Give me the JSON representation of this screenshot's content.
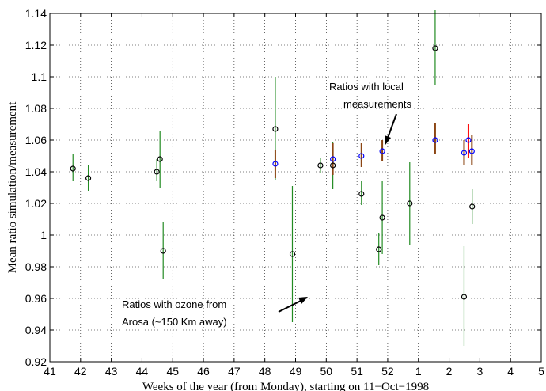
{
  "chart_data": {
    "type": "scatter",
    "title": "",
    "xlabel": "Weeks of the year (from Monday), starting on 11−Oct−1998",
    "ylabel": "Mean ratio simulation/measurement",
    "xlim": [
      41,
      58
    ],
    "ylim": [
      0.92,
      1.14
    ],
    "grid": true,
    "x_tick_labels": [
      "41",
      "42",
      "43",
      "44",
      "45",
      "46",
      "47",
      "48",
      "49",
      "50",
      "51",
      "52",
      "1",
      "2",
      "3",
      "4",
      "5"
    ],
    "y_tick_labels": [
      "0.92",
      "0.94",
      "0.96",
      "0.98",
      "1",
      "1.02",
      "1.04",
      "1.06",
      "1.08",
      "1.1",
      "1.12",
      "1.14"
    ],
    "colors": {
      "arosa": "#228b22",
      "local": "#ff0000",
      "local_overlap": "#8b4513",
      "arosa_marker": "#000000",
      "local_marker": "#0000ff"
    },
    "series": [
      {
        "key": "arosa",
        "points": [
          {
            "x": 41.8,
            "y": 1.042,
            "lo": 1.034,
            "hi": 1.051
          },
          {
            "x": 42.33,
            "y": 1.036,
            "lo": 1.028,
            "hi": 1.044
          },
          {
            "x": 44.7,
            "y": 1.04,
            "lo": 1.034,
            "hi": 1.048
          },
          {
            "x": 44.81,
            "y": 1.048,
            "lo": 1.03,
            "hi": 1.066
          },
          {
            "x": 44.92,
            "y": 0.99,
            "lo": 0.972,
            "hi": 1.008
          },
          {
            "x": 48.8,
            "y": 1.067,
            "lo": 1.035,
            "hi": 1.1
          },
          {
            "x": 49.39,
            "y": 0.988,
            "lo": 0.945,
            "hi": 1.031
          },
          {
            "x": 50.36,
            "y": 1.044,
            "lo": 1.039,
            "hi": 1.049
          },
          {
            "x": 50.79,
            "y": 1.044,
            "lo": 1.029,
            "hi": 1.059
          },
          {
            "x": 51.78,
            "y": 1.026,
            "lo": 1.019,
            "hi": 1.034
          },
          {
            "x": 52.38,
            "y": 0.991,
            "lo": 0.981,
            "hi": 1.001
          },
          {
            "x": 52.5,
            "y": 1.011,
            "lo": 0.988,
            "hi": 1.034
          },
          {
            "x": 53.45,
            "y": 1.02,
            "lo": 0.994,
            "hi": 1.046
          },
          {
            "x": 54.33,
            "y": 1.118,
            "lo": 1.095,
            "hi": 1.142
          },
          {
            "x": 55.33,
            "y": 0.961,
            "lo": 0.93,
            "hi": 0.993
          },
          {
            "x": 55.61,
            "y": 1.018,
            "lo": 1.007,
            "hi": 1.029
          }
        ]
      },
      {
        "key": "local",
        "points": [
          {
            "x": 48.8,
            "y": 1.045,
            "lo": 1.036,
            "hi": 1.054
          },
          {
            "x": 50.79,
            "y": 1.048,
            "lo": 1.038,
            "hi": 1.058
          },
          {
            "x": 51.78,
            "y": 1.05,
            "lo": 1.043,
            "hi": 1.058
          },
          {
            "x": 52.5,
            "y": 1.053,
            "lo": 1.047,
            "hi": 1.06
          },
          {
            "x": 54.33,
            "y": 1.06,
            "lo": 1.051,
            "hi": 1.071
          },
          {
            "x": 55.33,
            "y": 1.052,
            "lo": 1.044,
            "hi": 1.06
          },
          {
            "x": 55.48,
            "y": 1.06,
            "lo": 1.049,
            "hi": 1.07
          },
          {
            "x": 55.6,
            "y": 1.053,
            "lo": 1.044,
            "hi": 1.063
          }
        ]
      }
    ],
    "annotations": {
      "local_lines": [
        "Ratios with local",
        "measurements"
      ],
      "arosa_lines": [
        "Ratios with ozone from",
        "Arosa (~150 Km away)"
      ]
    }
  }
}
